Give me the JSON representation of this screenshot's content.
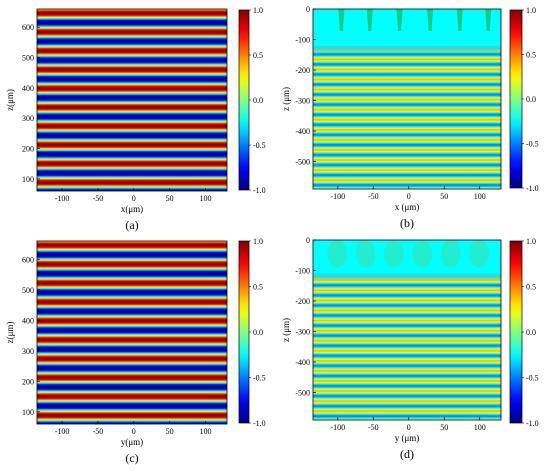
{
  "chart_data": [
    {
      "type": "heatmap",
      "panel_label": "(a)",
      "label_letter": "a",
      "xlabel": "x(μm)",
      "ylabel": "z(μm)",
      "xlim": [
        -135,
        130
      ],
      "ylim": [
        60,
        660
      ],
      "xticks": [
        -100,
        -50,
        0,
        50,
        100
      ],
      "yticks": [
        100,
        200,
        300,
        400,
        500,
        600
      ],
      "pattern": "horizontal-fringes",
      "fringe_period_um": 62,
      "colorbar": {
        "range": [
          -1.0,
          1.0
        ],
        "ticks": [
          "1.0",
          "0.5",
          "0.0",
          "-0.5",
          "-1.0"
        ]
      }
    },
    {
      "type": "heatmap",
      "panel_label": "(b)",
      "label_letter": "b",
      "xlabel": "x (μm)",
      "ylabel": "z (μm)",
      "xlim": [
        -135,
        130
      ],
      "ylim": [
        -590,
        0
      ],
      "xticks": [
        -100,
        -50,
        0,
        50,
        100
      ],
      "yticks": [
        0,
        -100,
        -200,
        -300,
        -400,
        -500
      ],
      "pattern": "horizontal-fringes-with-near-field-region",
      "fringe_period_um": 33,
      "near_field_depth_um": 130,
      "colorbar": {
        "range": [
          -1.0,
          1.0
        ],
        "ticks": [
          "1.0",
          "0.5",
          "0.0",
          "-0.5",
          "-1.0"
        ]
      }
    },
    {
      "type": "heatmap",
      "panel_label": "(c)",
      "label_letter": "c",
      "xlabel": "y(μm)",
      "ylabel": "z(μm)",
      "xlim": [
        -135,
        130
      ],
      "ylim": [
        60,
        660
      ],
      "xticks": [
        -100,
        -50,
        0,
        50,
        100
      ],
      "yticks": [
        100,
        200,
        300,
        400,
        500,
        600
      ],
      "pattern": "horizontal-fringes",
      "fringe_period_um": 62,
      "colorbar": {
        "range": [
          -1.0,
          1.0
        ],
        "ticks": [
          "1.0",
          "0.5",
          "0.0",
          "-0.5",
          "-1.0"
        ]
      }
    },
    {
      "type": "heatmap",
      "panel_label": "(d)",
      "label_letter": "d",
      "xlabel": "y (μm)",
      "ylabel": "z (μm)",
      "xlim": [
        -135,
        130
      ],
      "ylim": [
        -590,
        0
      ],
      "xticks": [
        -100,
        -50,
        0,
        50,
        100
      ],
      "yticks": [
        0,
        -100,
        -200,
        -300,
        -400,
        -500
      ],
      "pattern": "horizontal-fringes-with-near-field-region",
      "fringe_period_um": 33,
      "near_field_depth_um": 120,
      "colorbar": {
        "range": [
          -1.0,
          1.0
        ],
        "ticks": [
          "1.0",
          "0.5",
          "0.0",
          "-0.5",
          "-1.0"
        ]
      }
    }
  ]
}
